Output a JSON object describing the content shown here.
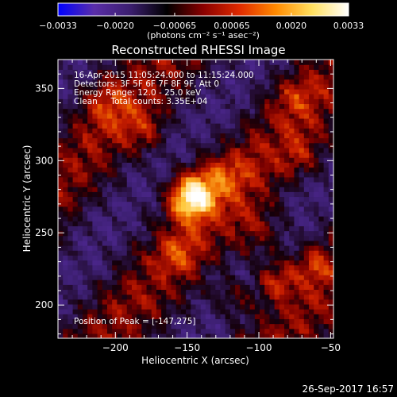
{
  "chart_data": {
    "type": "heatmap",
    "title": "Reconstructed RHESSI Image",
    "xlabel": "Heliocentric X (arcsec)",
    "ylabel": "Heliocentric Y (arcsec)",
    "xlim": [
      -240,
      -48
    ],
    "ylim": [
      177,
      370
    ],
    "xticks": [
      -200,
      -150,
      -100,
      -50
    ],
    "yticks": [
      200,
      250,
      300,
      350
    ],
    "colorbar": {
      "range": [
        -0.0033,
        0.0033
      ],
      "ticks": [
        "-0.0033",
        "-0.0020",
        "-0.00065",
        "0.00065",
        "0.0020",
        "0.0033"
      ],
      "unit_label": "(photons cm⁻² s⁻¹ asec⁻²)",
      "colors": [
        "#0000ff",
        "#5a2ea8",
        "#3b1e6e",
        "#000000",
        "#8a0000",
        "#e02a00",
        "#ff8a00",
        "#ffe060",
        "#ffffff"
      ]
    },
    "annotations": [
      "16-Apr-2015 11:05:24.000 to 11:15:24.000",
      "Detectors: 3F 5F 6F 7F 8F 9F, Att 0",
      "Energy Range: 12.0 - 25.0 keV",
      "Clean     Total counts: 3.35E+04"
    ],
    "peak_label": "Position of Peak = [-147,275]",
    "peak": {
      "x": -147,
      "y": 275,
      "value": 0.0033
    },
    "emission_features": [
      {
        "x": -147,
        "y": 275,
        "sx": 11,
        "sy": 11,
        "amp": 1.0
      },
      {
        "x": -125,
        "y": 290,
        "sx": 14,
        "sy": 12,
        "amp": 0.35
      },
      {
        "x": -100,
        "y": 250,
        "sx": 14,
        "sy": 14,
        "amp": 0.3
      },
      {
        "x": -88,
        "y": 218,
        "sx": 10,
        "sy": 10,
        "amp": 0.42
      },
      {
        "x": -62,
        "y": 228,
        "sx": 9,
        "sy": 9,
        "amp": 0.35
      },
      {
        "x": -118,
        "y": 205,
        "sx": 10,
        "sy": 8,
        "amp": 0.3
      },
      {
        "x": -205,
        "y": 340,
        "sx": 12,
        "sy": 12,
        "amp": 0.3
      },
      {
        "x": -180,
        "y": 320,
        "sx": 10,
        "sy": 10,
        "amp": 0.28
      },
      {
        "x": -155,
        "y": 235,
        "sx": 10,
        "sy": 10,
        "amp": 0.3
      },
      {
        "x": -70,
        "y": 305,
        "sx": 12,
        "sy": 12,
        "amp": 0.25
      },
      {
        "x": -75,
        "y": 345,
        "sx": 12,
        "sy": 10,
        "amp": 0.25
      }
    ]
  },
  "timestamp": "26-Sep-2017 16:57"
}
